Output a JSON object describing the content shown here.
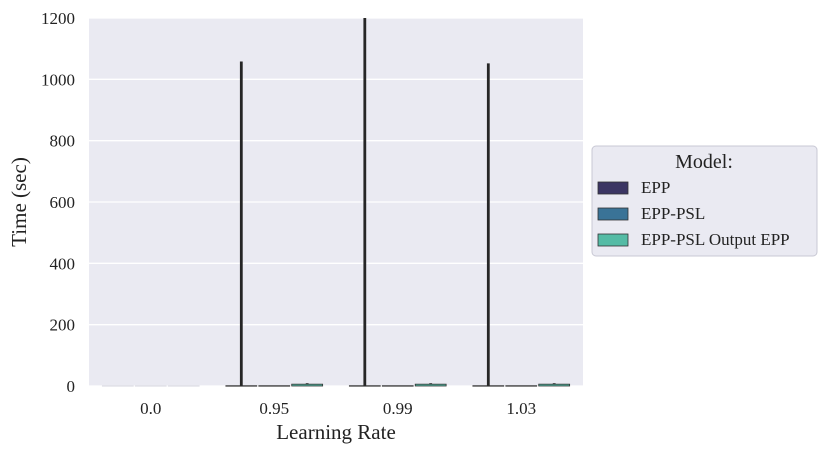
{
  "chart_data": {
    "type": "bar",
    "xlabel": "Learning Rate",
    "ylabel": "Time (sec)",
    "ylim": [
      0,
      1200
    ],
    "yticks": [
      0,
      200,
      400,
      600,
      800,
      1000,
      1200
    ],
    "categories": [
      "0.0",
      "0.95",
      "0.99",
      "1.03"
    ],
    "grid": true,
    "legend_position": "right",
    "legend_title": "Model:",
    "series": [
      {
        "name": "EPP",
        "color": "#3b3563",
        "values": [
          1,
          1,
          1,
          1
        ],
        "error_upper": [
          1,
          1058,
          1200,
          1052
        ]
      },
      {
        "name": "EPP-PSL",
        "color": "#3a7397",
        "values": [
          1,
          1,
          1,
          1
        ],
        "error_upper": [
          1,
          1,
          1,
          1
        ]
      },
      {
        "name": "EPP-PSL Output EPP",
        "color": "#54bba5",
        "values": [
          1,
          6,
          6,
          6
        ],
        "error_upper": [
          1,
          9,
          9,
          9
        ]
      }
    ]
  }
}
